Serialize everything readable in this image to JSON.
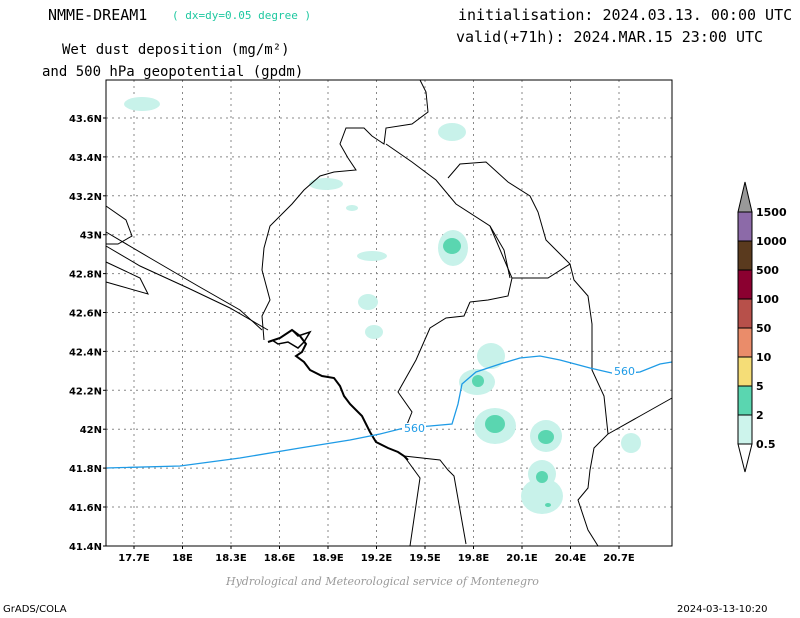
{
  "header": {
    "model": "NMME-DREAM1",
    "resolution": "( dx=dy=0.05 degree )",
    "title_line1": "Wet dust deposition (mg/m²)",
    "title_line2": "and 500 hPa geopotential (gpdm)",
    "init": "initialisation: 2024.03.13. 00:00 UTC",
    "valid": "valid(+71h): 2024.MAR.15 23:00 UTC"
  },
  "map": {
    "lat_labels": [
      "43.6N",
      "43.4N",
      "43.2N",
      "43N",
      "42.8N",
      "42.6N",
      "42.4N",
      "42.2N",
      "42N",
      "41.8N",
      "41.6N",
      "41.4N"
    ],
    "lon_labels": [
      "17.7E",
      "18E",
      "18.3E",
      "18.6E",
      "18.9E",
      "19.2E",
      "19.5E",
      "19.8E",
      "20.1E",
      "20.4E",
      "20.7E"
    ],
    "contour_label": "560",
    "colors": {
      "contour": "#1e9be6",
      "grid": "#888888",
      "light": "#c8f2ea",
      "mid": "#5ad6b0"
    }
  },
  "colorbar": {
    "levels": [
      "1500",
      "1000",
      "500",
      "100",
      "50",
      "10",
      "5",
      "2",
      "0.5"
    ],
    "colors": [
      "#8c6aa8",
      "#5a3a1e",
      "#8b0030",
      "#b7504a",
      "#ea8c6a",
      "#f5dd77",
      "#5ad6b0",
      "#cdf4ec"
    ],
    "top_color": "#999999"
  },
  "footer": {
    "credit": "Hydrological and Meteorological service of Montenegro",
    "left": "GrADS/COLA",
    "right": "2024-03-13-10:20"
  }
}
